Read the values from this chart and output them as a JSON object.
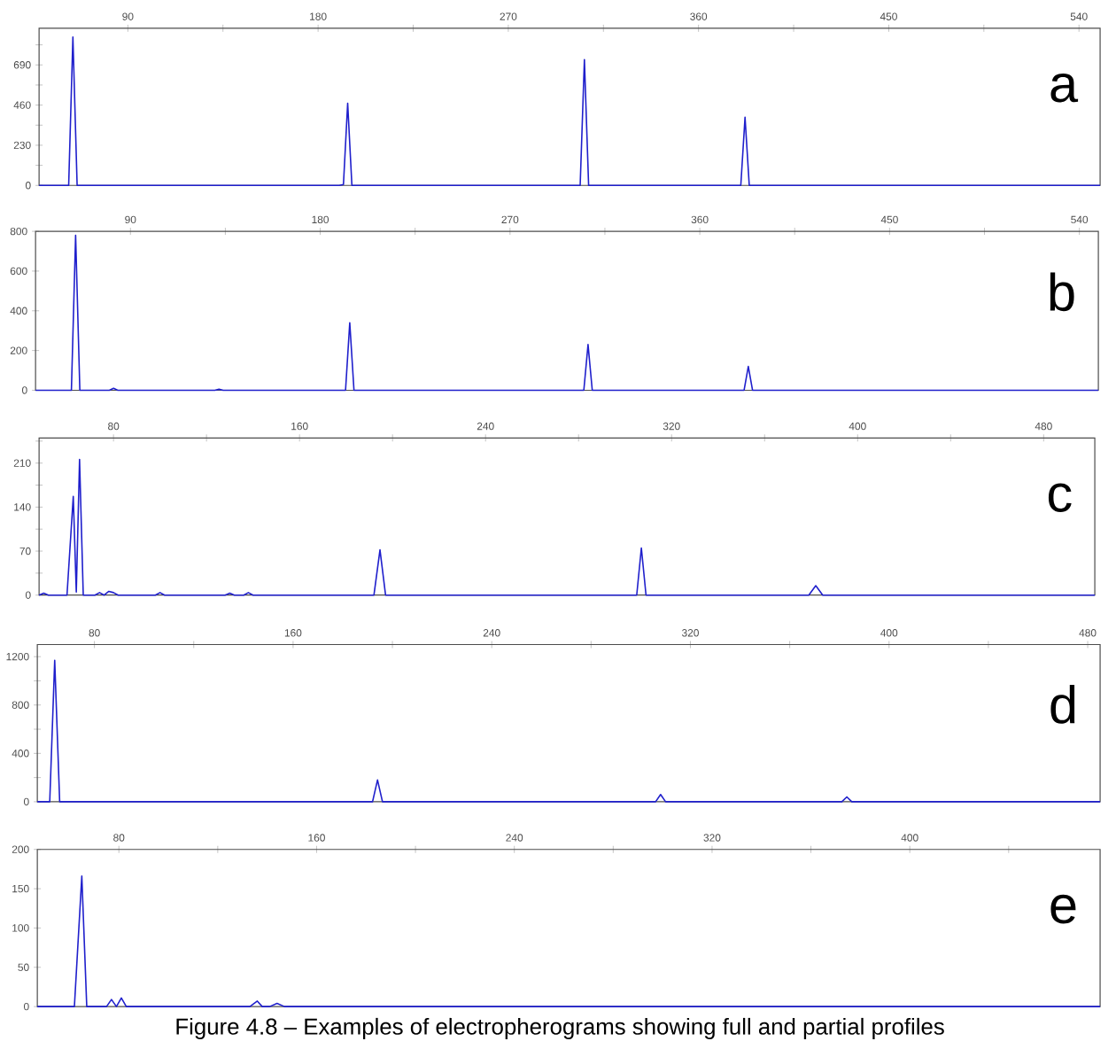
{
  "chart_data": [
    {
      "type": "line",
      "color": "#1f1fcc",
      "annotations": [
        "a"
      ],
      "xlim": [
        48,
        550
      ],
      "ylim": [
        0,
        900
      ],
      "xticks": [
        90,
        {
          "value": 135,
          "label": null
        },
        180,
        {
          "value": 225,
          "label": null
        },
        270,
        {
          "value": 315,
          "label": null
        },
        360,
        {
          "value": 405,
          "label": null
        },
        450,
        {
          "value": 495,
          "label": null
        },
        540
      ],
      "yticks": [
        0,
        {
          "value": 115,
          "label": null
        },
        230,
        {
          "value": 345,
          "label": null
        },
        460,
        {
          "value": 575,
          "label": null
        },
        690,
        {
          "value": 805,
          "label": null
        }
      ],
      "x": [
        48,
        62,
        64,
        66,
        190,
        192,
        194,
        196,
        304,
        306,
        308,
        380,
        382,
        384,
        550
      ],
      "values": [
        0,
        0,
        850,
        0,
        0,
        5,
        470,
        0,
        0,
        720,
        0,
        0,
        390,
        0,
        0
      ]
    },
    {
      "type": "line",
      "color": "#1f1fcc",
      "annotations": [
        "b"
      ],
      "xlim": [
        45,
        549
      ],
      "ylim": [
        0,
        800
      ],
      "xticks": [
        90,
        {
          "value": 135,
          "label": null
        },
        180,
        {
          "value": 225,
          "label": null
        },
        270,
        {
          "value": 315,
          "label": null
        },
        360,
        {
          "value": 405,
          "label": null
        },
        450,
        {
          "value": 495,
          "label": null
        },
        540
      ],
      "yticks": [
        0,
        200,
        400,
        600,
        800
      ],
      "x": [
        45,
        62,
        64,
        66,
        80,
        82,
        84,
        130,
        132,
        134,
        192,
        194,
        196,
        305,
        307,
        309,
        381,
        383,
        385,
        549
      ],
      "values": [
        0,
        0,
        780,
        0,
        0,
        10,
        0,
        0,
        5,
        0,
        0,
        340,
        0,
        0,
        230,
        0,
        0,
        120,
        0,
        0
      ]
    },
    {
      "type": "line",
      "color": "#1f1fcc",
      "annotations": [
        "c"
      ],
      "xlim": [
        48,
        502
      ],
      "ylim": [
        0,
        250
      ],
      "xticks": [
        80,
        {
          "value": 120,
          "label": null
        },
        160,
        {
          "value": 200,
          "label": null
        },
        240,
        {
          "value": 280,
          "label": null
        },
        320,
        {
          "value": 360,
          "label": null
        },
        400,
        {
          "value": 440,
          "label": null
        },
        480
      ],
      "yticks": [
        0,
        {
          "value": 35,
          "label": null
        },
        70,
        {
          "value": 105,
          "label": null
        },
        140,
        {
          "value": 175,
          "label": null
        },
        210,
        {
          "value": 245,
          "label": null
        }
      ],
      "x": [
        48,
        50,
        52,
        60,
        62.7,
        64,
        65.4,
        67,
        72,
        74,
        76,
        78,
        80,
        82,
        98,
        100,
        102,
        128,
        130,
        132,
        136,
        138,
        140,
        192,
        194.6,
        197,
        305,
        307,
        309,
        379,
        382,
        385,
        502
      ],
      "values": [
        0,
        3,
        0,
        0,
        157,
        5,
        216,
        0,
        0,
        4,
        0,
        6,
        4,
        0,
        0,
        4,
        0,
        0,
        3,
        0,
        0,
        4,
        0,
        0,
        72,
        0,
        0,
        75,
        0,
        0,
        15,
        0,
        0
      ]
    },
    {
      "type": "line",
      "color": "#1f1fcc",
      "annotations": [
        "d"
      ],
      "xlim": [
        57,
        485
      ],
      "ylim": [
        0,
        1300
      ],
      "xticks": [
        80,
        {
          "value": 120,
          "label": null
        },
        160,
        {
          "value": 200,
          "label": null
        },
        240,
        {
          "value": 280,
          "label": null
        },
        320,
        {
          "value": 360,
          "label": null
        },
        400,
        {
          "value": 440,
          "label": null
        },
        480
      ],
      "yticks": [
        0,
        {
          "value": 200,
          "label": null
        },
        400,
        {
          "value": 600,
          "label": null
        },
        800,
        {
          "value": 1000,
          "label": null
        },
        1200
      ],
      "x": [
        57,
        62,
        64,
        66,
        192,
        194,
        196,
        306,
        308,
        310,
        381,
        383,
        385,
        485
      ],
      "values": [
        0,
        0,
        1170,
        0,
        0,
        180,
        0,
        0,
        60,
        0,
        0,
        40,
        0,
        0
      ]
    },
    {
      "type": "line",
      "color": "#1f1fcc",
      "annotations": [
        "e",
        "Figure 4.8 – Examples of electropherograms showing full and partial profiles"
      ],
      "xlim": [
        47,
        477
      ],
      "ylim": [
        0,
        200
      ],
      "xticks": [
        80,
        {
          "value": 120,
          "label": null
        },
        160,
        {
          "value": 200,
          "label": null
        },
        240,
        {
          "value": 280,
          "label": null
        },
        320,
        {
          "value": 360,
          "label": null
        },
        400,
        {
          "value": 440,
          "label": null
        }
      ],
      "yticks": [
        0,
        50,
        100,
        150,
        200
      ],
      "x": [
        47,
        62,
        65,
        67,
        75,
        77,
        79,
        81,
        83,
        133,
        136,
        138,
        141,
        144,
        147,
        477
      ],
      "values": [
        0,
        0,
        166,
        0,
        0,
        9,
        0,
        11,
        0,
        0,
        7,
        0,
        0,
        4,
        0,
        0
      ]
    }
  ]
}
